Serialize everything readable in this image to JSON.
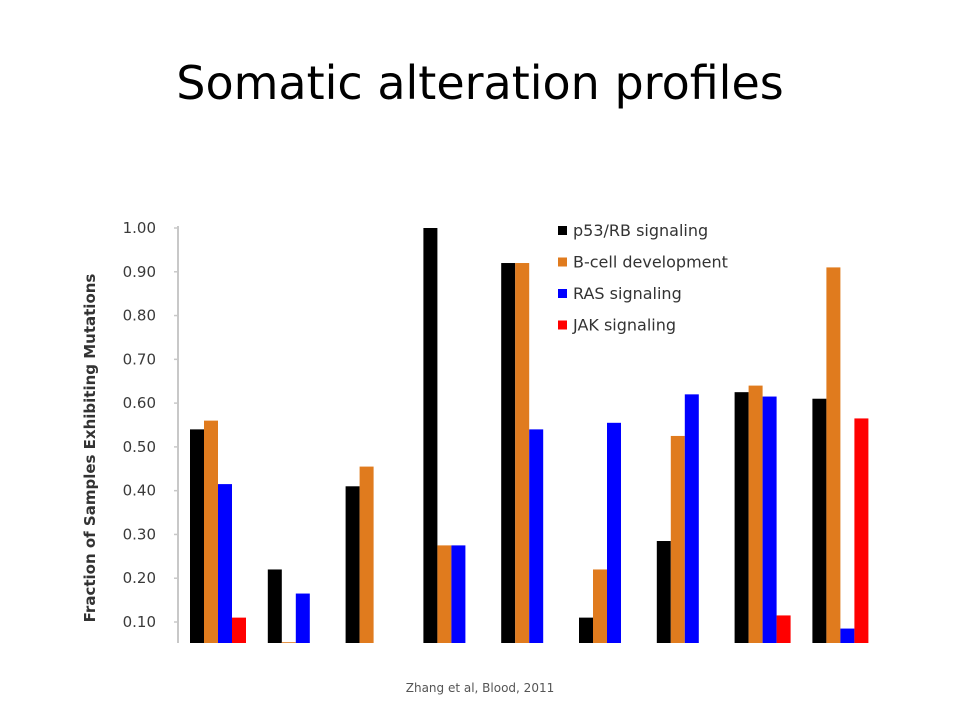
{
  "slide": {
    "title": "Somatic alteration profiles",
    "citation": "Zhang et al, Blood, 2011"
  },
  "chart_data": {
    "type": "bar",
    "title": "",
    "xlabel": "",
    "ylabel": "Fraction of Samples Exhibiting Mutations",
    "ylim": [
      0.05,
      1.0
    ],
    "y_ticks": [
      "0.10",
      "0.20",
      "0.30",
      "0.40",
      "0.50",
      "0.60",
      "0.70",
      "0.80",
      "0.90",
      "1.00"
    ],
    "grid": false,
    "legend_position": "top-right",
    "categories": [
      "",
      "",
      "",
      "",
      "",
      "",
      "",
      "",
      ""
    ],
    "series": [
      {
        "name": "p53/RB signaling",
        "color": "#000000",
        "values": [
          0.54,
          0.22,
          0.41,
          1.0,
          0.92,
          0.11,
          0.285,
          0.625,
          0.61
        ]
      },
      {
        "name": "B-cell development",
        "color": "#e07b1e",
        "values": [
          0.56,
          0.05,
          0.455,
          0.275,
          0.92,
          0.22,
          0.525,
          0.64,
          0.91
        ]
      },
      {
        "name": "RAS signaling",
        "color": "#0000ff",
        "values": [
          0.415,
          0.165,
          null,
          0.275,
          0.54,
          0.555,
          0.62,
          0.615,
          0.085
        ]
      },
      {
        "name": "JAK signaling",
        "color": "#ff0000",
        "values": [
          0.11,
          null,
          null,
          null,
          null,
          null,
          null,
          0.115,
          0.565
        ]
      }
    ]
  }
}
